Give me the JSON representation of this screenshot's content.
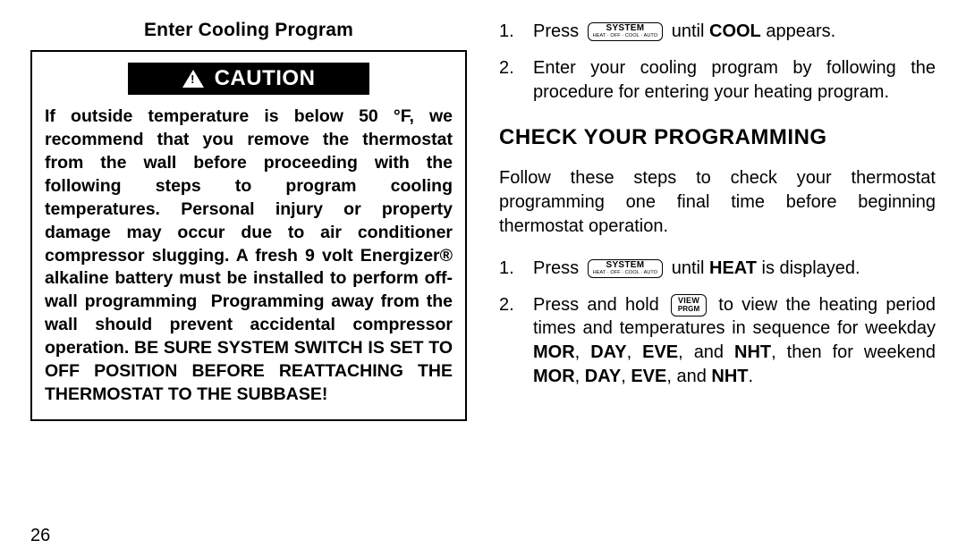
{
  "left": {
    "section_title": "Enter Cooling Program",
    "caution_label": "CAUTION",
    "caution_body": "If outside temperature is below 50 °F, we recommend that you remove the thermostat from the wall before proceeding with the following steps to program cooling temperatures. Personal injury or property damage may occur due to air conditioner compressor slugging. A fresh 9 volt Energizer® alkaline battery must be installed to perform off-wall programming  Programming away from the wall should prevent accidental compressor operation. BE SURE SYSTEM SWITCH IS SET TO OFF POSITION BEFORE REATTACHING THE THERMOSTAT TO THE SUBBASE!"
  },
  "right": {
    "step1_a": "Press",
    "step1_b": "until",
    "step1_bold": "COOL",
    "step1_c": "appears.",
    "step2": "Enter your cooling program by following the procedure for entering your heating program.",
    "heading": "CHECK YOUR PROGRAMMING",
    "intro": "Follow these steps to check your thermostat programming one final time before beginning thermostat operation.",
    "check1_a": "Press",
    "check1_b": "until",
    "check1_bold": "HEAT",
    "check1_c": "is displayed.",
    "check2_a": "Press and hold",
    "check2_b": "to view the heating period times and temperatures in sequence for weekday",
    "check2_words": {
      "mor": "MOR",
      "day": "DAY",
      "eve": "EVE",
      "and": "and",
      "nht": "NHT"
    },
    "check2_mid": ", then for weekend"
  },
  "keys": {
    "system_top": "SYSTEM",
    "system_bot": "HEAT · OFF · COOL · AUTO",
    "view_top": "VIEW",
    "view_bot": "PRGM"
  },
  "page_number": "26"
}
